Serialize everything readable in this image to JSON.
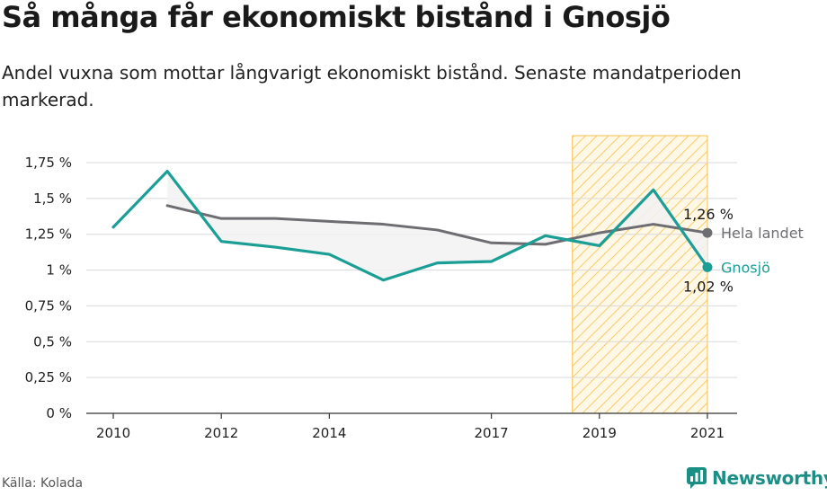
{
  "title": "Så många får ekonomiskt bistånd i Gnosjö",
  "subtitle": "Andel vuxna som mottar långvarigt ekonomiskt bistånd. Senaste mandatperioden markerad.",
  "source": "Källa: Kolada",
  "brand": "Newsworthy",
  "colors": {
    "gnosjo": "#1a9e95",
    "hela_landet": "#6e6e72",
    "highlight_fill": "#f5c04a",
    "grid": "#d9d9d9"
  },
  "chart_data": {
    "type": "line",
    "x": [
      2010,
      2011,
      2012,
      2013,
      2014,
      2015,
      2016,
      2017,
      2018,
      2019,
      2020,
      2021
    ],
    "x_ticks": [
      "2010",
      "2012",
      "2014",
      "2017",
      "2019",
      "2021"
    ],
    "x_tick_values": [
      2010,
      2012,
      2014,
      2017,
      2019,
      2021
    ],
    "y_ticks": [
      "0 %",
      "0,25 %",
      "0,5 %",
      "0,75 %",
      "1 %",
      "1,25 %",
      "1,5 %",
      "1,75 %"
    ],
    "y_tick_values": [
      0,
      0.25,
      0.5,
      0.75,
      1,
      1.25,
      1.5,
      1.75
    ],
    "ylim": [
      0,
      1.75
    ],
    "xlim": [
      2009.5,
      2021.55
    ],
    "highlight_range": [
      2018.5,
      2021
    ],
    "grid": true,
    "series": [
      {
        "name": "Gnosjö",
        "values": [
          1.3,
          1.69,
          1.2,
          1.16,
          1.11,
          0.93,
          1.05,
          1.06,
          1.24,
          1.17,
          1.56,
          1.02
        ],
        "end_label": "1,02 %",
        "color": "#1a9e95"
      },
      {
        "name": "Hela landet",
        "values": [
          null,
          1.45,
          1.36,
          1.36,
          1.34,
          1.32,
          1.28,
          1.19,
          1.18,
          1.26,
          1.32,
          1.26
        ],
        "end_label": "1,26 %",
        "color": "#6e6e72"
      }
    ]
  }
}
